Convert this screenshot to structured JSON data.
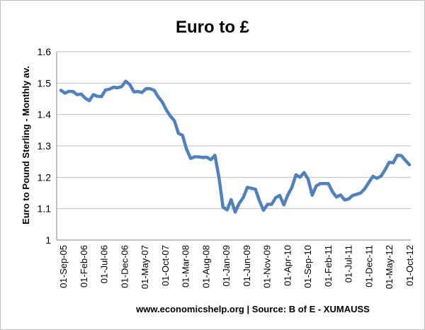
{
  "chart_data": {
    "type": "line",
    "title": "Euro to £",
    "ylabel": "Euro  to Pound Sterling - Monthly av.",
    "xlabel": "www.economicshelp.org | Source: B of E  - XUMAUSS",
    "ylim": [
      1,
      1.6
    ],
    "yticks": [
      "1",
      "1.1",
      "1.2",
      "1.3",
      "1.4",
      "1.5",
      "1.6"
    ],
    "grid": true,
    "legend": "none",
    "line_color": "#4f81bd",
    "x_tick_labels": [
      "01-Sep-05",
      "01-Feb-06",
      "01-Jul-06",
      "01-Dec-06",
      "01-May-07",
      "01-Oct-07",
      "01-Mar-08",
      "01-Aug-08",
      "01-Jan-09",
      "01-Jun-09",
      "01-Nov-09",
      "01-Apr-10",
      "01-Sep-10",
      "01-Feb-11",
      "01-Jul-11",
      "01-Dec-11",
      "01-May-12",
      "01-Oct-12"
    ],
    "series": [
      {
        "x_start": "01-Sep-05",
        "x_end": "01-Oct-12",
        "values": [
          1.477,
          1.468,
          1.474,
          1.473,
          1.463,
          1.465,
          1.452,
          1.444,
          1.463,
          1.458,
          1.457,
          1.478,
          1.481,
          1.487,
          1.485,
          1.489,
          1.506,
          1.495,
          1.472,
          1.473,
          1.47,
          1.482,
          1.482,
          1.477,
          1.456,
          1.44,
          1.415,
          1.395,
          1.38,
          1.34,
          1.334,
          1.29,
          1.26,
          1.265,
          1.265,
          1.263,
          1.264,
          1.256,
          1.27,
          1.2,
          1.105,
          1.096,
          1.129,
          1.089,
          1.117,
          1.135,
          1.168,
          1.165,
          1.162,
          1.125,
          1.095,
          1.114,
          1.114,
          1.135,
          1.142,
          1.112,
          1.144,
          1.168,
          1.208,
          1.2,
          1.215,
          1.194,
          1.143,
          1.172,
          1.18,
          1.18,
          1.18,
          1.154,
          1.137,
          1.144,
          1.128,
          1.131,
          1.142,
          1.146,
          1.15,
          1.164,
          1.184,
          1.203,
          1.197,
          1.204,
          1.224,
          1.248,
          1.246,
          1.27,
          1.269,
          1.254,
          1.24
        ]
      }
    ]
  }
}
